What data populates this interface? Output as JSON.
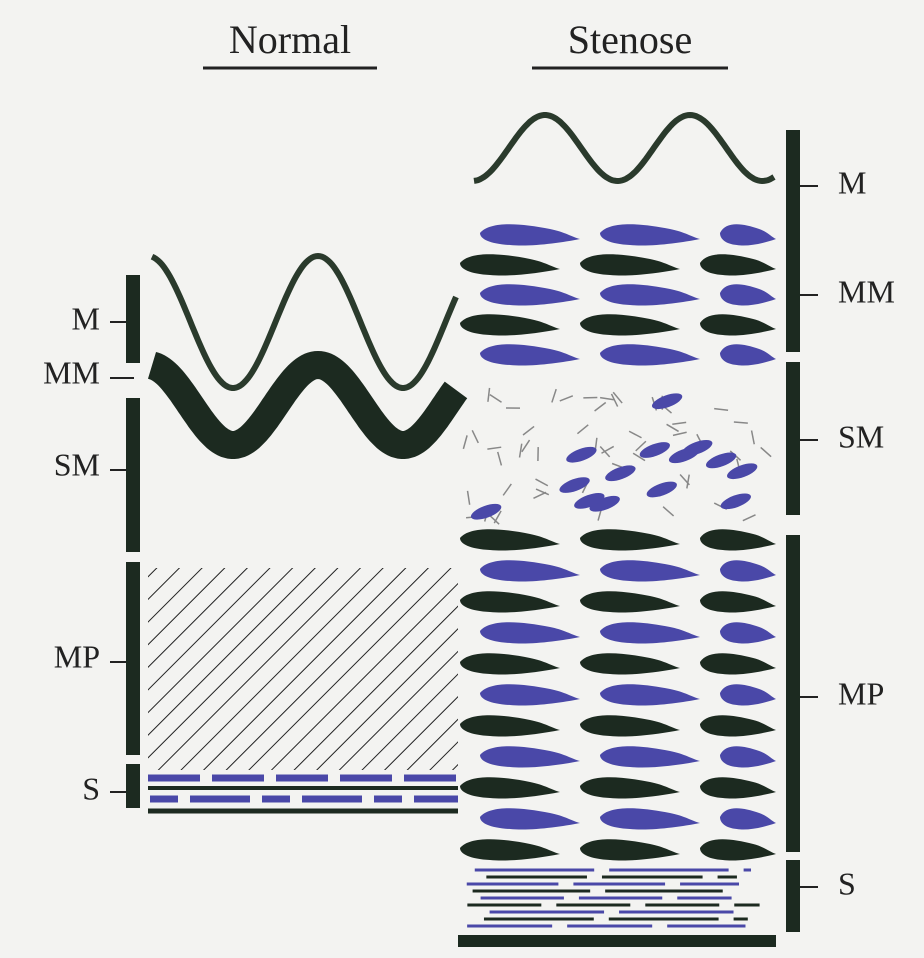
{
  "columns": [
    {
      "title": "Normal",
      "layers": [
        {
          "label": "M"
        },
        {
          "label": "MM"
        },
        {
          "label": "SM"
        },
        {
          "label": "MP"
        },
        {
          "label": "S"
        }
      ]
    },
    {
      "title": "Stenose",
      "layers": [
        {
          "label": "M"
        },
        {
          "label": "MM"
        },
        {
          "label": "SM"
        },
        {
          "label": "MP"
        },
        {
          "label": "S"
        }
      ]
    }
  ]
}
